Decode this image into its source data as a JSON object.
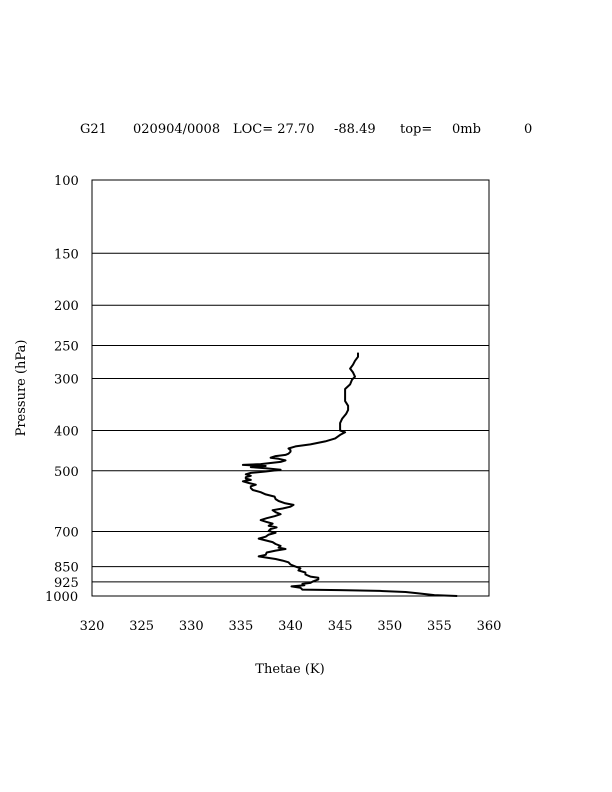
{
  "header": {
    "station": "G21",
    "datetime": "020904/0008",
    "loc_text": "LOC= 27.70",
    "lon_text": "-88.49",
    "top_text": "top=",
    "top_value": "0mb",
    "count": "0"
  },
  "chart_data": {
    "type": "line",
    "title": "",
    "xlabel": "Thetae (K)",
    "ylabel": "Pressure (hPa)",
    "xlim": [
      320,
      360
    ],
    "ylim": [
      1000,
      100
    ],
    "y_scale": "log",
    "x_ticks": [
      320,
      325,
      330,
      335,
      340,
      345,
      350,
      355,
      360
    ],
    "y_ticks": [
      100,
      150,
      200,
      250,
      300,
      400,
      500,
      700,
      850,
      925,
      1000
    ],
    "grid_lines_y": [
      150,
      200,
      250,
      300,
      400,
      500,
      700,
      850,
      925,
      1000
    ],
    "series": [
      {
        "name": "",
        "points": [
          [
            356.8,
            1000
          ],
          [
            354.5,
            995
          ],
          [
            352.8,
            985
          ],
          [
            351.6,
            978
          ],
          [
            349.0,
            972
          ],
          [
            345.0,
            968
          ],
          [
            341.2,
            965
          ],
          [
            341.0,
            955
          ],
          [
            340.1,
            948
          ],
          [
            341.4,
            942
          ],
          [
            341.2,
            935
          ],
          [
            342.0,
            930
          ],
          [
            342.3,
            922
          ],
          [
            342.8,
            912
          ],
          [
            342.8,
            904
          ],
          [
            342.0,
            898
          ],
          [
            341.5,
            888
          ],
          [
            341.5,
            878
          ],
          [
            340.8,
            868
          ],
          [
            341.0,
            858
          ],
          [
            340.5,
            850
          ],
          [
            340.0,
            840
          ],
          [
            339.8,
            830
          ],
          [
            339.2,
            822
          ],
          [
            338.5,
            815
          ],
          [
            337.5,
            808
          ],
          [
            336.8,
            803
          ],
          [
            337.5,
            796
          ],
          [
            337.6,
            786
          ],
          [
            338.5,
            778
          ],
          [
            339.5,
            771
          ],
          [
            338.8,
            765
          ],
          [
            339.0,
            758
          ],
          [
            338.5,
            750
          ],
          [
            338.2,
            742
          ],
          [
            337.5,
            735
          ],
          [
            336.8,
            728
          ],
          [
            337.5,
            720
          ],
          [
            337.8,
            712
          ],
          [
            338.5,
            705
          ],
          [
            337.8,
            698
          ],
          [
            338.0,
            690
          ],
          [
            338.6,
            684
          ],
          [
            337.8,
            678
          ],
          [
            338.2,
            670
          ],
          [
            337.5,
            663
          ],
          [
            337.0,
            657
          ],
          [
            337.6,
            650
          ],
          [
            338.4,
            643
          ],
          [
            339.0,
            636
          ],
          [
            338.5,
            629
          ],
          [
            338.2,
            622
          ],
          [
            339.2,
            616
          ],
          [
            340.0,
            610
          ],
          [
            340.3,
            604
          ],
          [
            339.4,
            598
          ],
          [
            338.8,
            591
          ],
          [
            338.5,
            585
          ],
          [
            338.4,
            577
          ],
          [
            337.5,
            570
          ],
          [
            337.0,
            563
          ],
          [
            336.2,
            556
          ],
          [
            336.0,
            550
          ],
          [
            336.0,
            545
          ],
          [
            336.5,
            540
          ],
          [
            335.8,
            535
          ],
          [
            335.2,
            530
          ],
          [
            336.0,
            526
          ],
          [
            335.5,
            522
          ],
          [
            335.5,
            518
          ],
          [
            336.0,
            514
          ],
          [
            335.5,
            510
          ],
          [
            336.0,
            506
          ],
          [
            337.5,
            502
          ],
          [
            339.0,
            497
          ],
          [
            337.5,
            493
          ],
          [
            336.0,
            490
          ],
          [
            337.5,
            487
          ],
          [
            335.2,
            484
          ],
          [
            337.0,
            482
          ],
          [
            338.0,
            479
          ],
          [
            339.0,
            476
          ],
          [
            339.5,
            472
          ],
          [
            338.8,
            468
          ],
          [
            338.0,
            465
          ],
          [
            338.5,
            461
          ],
          [
            339.5,
            458
          ],
          [
            339.8,
            455
          ],
          [
            340.0,
            450
          ],
          [
            340.0,
            446
          ],
          [
            339.8,
            442
          ],
          [
            340.5,
            437
          ],
          [
            342.0,
            432
          ],
          [
            343.5,
            425
          ],
          [
            344.5,
            418
          ],
          [
            345.0,
            410
          ],
          [
            345.5,
            404
          ],
          [
            345.0,
            400
          ],
          [
            345.0,
            394
          ],
          [
            345.0,
            384
          ],
          [
            345.2,
            375
          ],
          [
            345.6,
            365
          ],
          [
            345.8,
            357
          ],
          [
            345.8,
            349
          ],
          [
            345.5,
            340
          ],
          [
            345.5,
            332
          ],
          [
            345.5,
            325
          ],
          [
            345.5,
            318
          ],
          [
            346.0,
            310
          ],
          [
            346.2,
            302
          ],
          [
            346.5,
            297
          ],
          [
            346.3,
            290
          ],
          [
            346.0,
            284
          ],
          [
            346.3,
            278
          ],
          [
            346.5,
            272
          ],
          [
            346.8,
            266
          ],
          [
            346.8,
            260
          ]
        ]
      }
    ]
  }
}
